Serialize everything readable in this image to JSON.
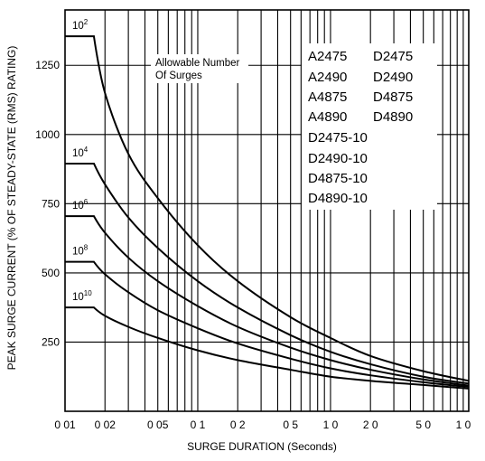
{
  "chart_data": {
    "type": "line",
    "xlabel": "SURGE DURATION (Seconds)",
    "ylabel": "PEAK SURGE CURRENT (% OF STEADY-STATE (RMS) RATING)",
    "x_scale": "log",
    "xlim": [
      0.01,
      11
    ],
    "ylim": [
      0,
      1450
    ],
    "grid": true,
    "x_tick_values": [
      0.01,
      0.02,
      0.05,
      0.1,
      0.2,
      0.5,
      1,
      2,
      5,
      10
    ],
    "x_tick_labels": [
      "0 01",
      "0 02",
      "0 05",
      "0 1",
      "0 2",
      "0 5",
      "1 0",
      "2 0",
      "5 0",
      "1 0"
    ],
    "y_tick_values": [
      250,
      500,
      750,
      1000,
      1250
    ],
    "y_tick_labels": [
      "250",
      "500",
      "750",
      "1000",
      "1250"
    ],
    "annotation": {
      "line1": "Allowable Number",
      "line2": "Of Surges"
    },
    "models_col1": [
      "A2475",
      "A2490",
      "A4875",
      "A4890"
    ],
    "models_col2": [
      "D2475",
      "D2490",
      "D4875",
      "D4890"
    ],
    "models_full": [
      "D2475-10",
      "D2490-10",
      "D4875-10",
      "D4890-10"
    ],
    "series": [
      {
        "name_base": "10",
        "name_exp": "2",
        "x": [
          0.01,
          0.0165,
          0.02,
          0.03,
          0.05,
          0.1,
          0.2,
          0.5,
          1,
          2,
          5,
          11
        ],
        "y": [
          1355,
          1355,
          1150,
          930,
          770,
          600,
          470,
          340,
          265,
          200,
          145,
          110
        ]
      },
      {
        "name_base": "10",
        "name_exp": "4",
        "x": [
          0.01,
          0.0165,
          0.02,
          0.03,
          0.05,
          0.1,
          0.2,
          0.5,
          1,
          2,
          5,
          11
        ],
        "y": [
          895,
          895,
          820,
          700,
          590,
          470,
          375,
          275,
          215,
          170,
          125,
          100
        ]
      },
      {
        "name_base": "10",
        "name_exp": "6",
        "x": [
          0.01,
          0.0165,
          0.02,
          0.03,
          0.05,
          0.1,
          0.2,
          0.5,
          1,
          2,
          5,
          11
        ],
        "y": [
          705,
          705,
          645,
          555,
          470,
          380,
          305,
          230,
          185,
          150,
          115,
          93
        ]
      },
      {
        "name_base": "10",
        "name_exp": "8",
        "x": [
          0.01,
          0.0165,
          0.02,
          0.03,
          0.05,
          0.1,
          0.2,
          0.5,
          1,
          2,
          5,
          11
        ],
        "y": [
          540,
          540,
          495,
          430,
          365,
          300,
          245,
          190,
          155,
          130,
          105,
          88
        ]
      },
      {
        "name_base": "10",
        "name_exp": "10",
        "x": [
          0.01,
          0.0165,
          0.02,
          0.03,
          0.05,
          0.1,
          0.2,
          0.5,
          1,
          2,
          5,
          11
        ],
        "y": [
          375,
          375,
          345,
          305,
          265,
          220,
          185,
          150,
          125,
          110,
          95,
          82
        ]
      }
    ]
  }
}
